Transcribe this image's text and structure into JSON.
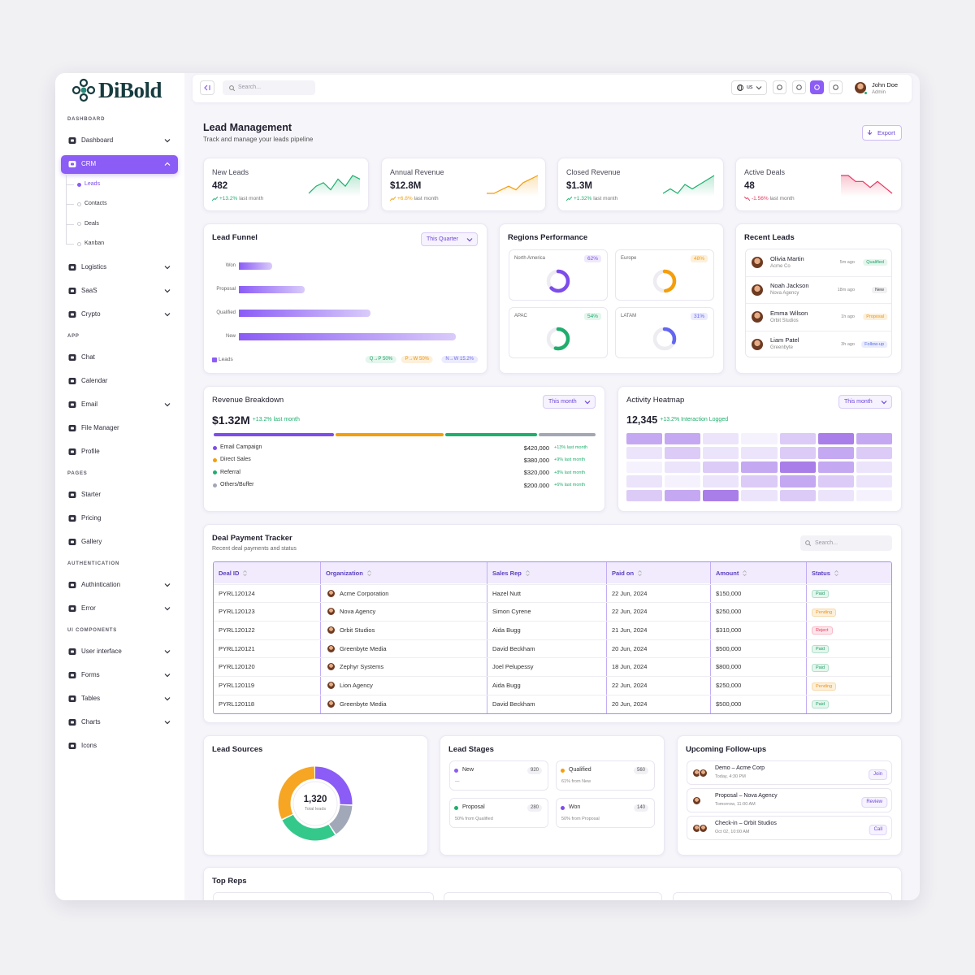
{
  "brand": "DiBold",
  "sidebar": [
    {
      "label": "DASHBOARD",
      "items": [
        {
          "label": "Dashboard",
          "chevron": true
        },
        {
          "label": "CRM",
          "active": true,
          "open": true,
          "chevron": true,
          "children": [
            {
              "label": "Leads",
              "active": true
            },
            {
              "label": "Contacts"
            },
            {
              "label": "Deals"
            },
            {
              "label": "Kanban"
            }
          ]
        },
        {
          "label": "Logistics",
          "chevron": true
        },
        {
          "label": "SaaS",
          "chevron": true
        },
        {
          "label": "Crypto",
          "chevron": true
        }
      ]
    },
    {
      "label": "APP",
      "items": [
        {
          "label": "Chat"
        },
        {
          "label": "Calendar"
        },
        {
          "label": "Email",
          "chevron": true
        },
        {
          "label": "File Manager"
        },
        {
          "label": "Profile"
        }
      ]
    },
    {
      "label": "PAGES",
      "items": [
        {
          "label": "Starter"
        },
        {
          "label": "Pricing"
        },
        {
          "label": "Gallery"
        }
      ]
    },
    {
      "label": "AUTHENTICATION",
      "items": [
        {
          "label": "Authintication",
          "chevron": true
        },
        {
          "label": "Error",
          "chevron": true
        }
      ]
    },
    {
      "label": "UI COMPONENTS",
      "items": [
        {
          "label": "User interface",
          "chevron": true
        },
        {
          "label": "Forms",
          "chevron": true
        },
        {
          "label": "Tables",
          "chevron": true
        },
        {
          "label": "Charts",
          "chevron": true
        },
        {
          "label": "Icons"
        }
      ]
    }
  ],
  "topbar": {
    "search_placeholder": "Search...",
    "language": "us",
    "user": {
      "name": "John Doe",
      "role": "Admin"
    }
  },
  "header": {
    "title": "Lead Management",
    "subtitle": "Track and manage your leads pipeline",
    "export": "Export"
  },
  "stats": [
    {
      "label": "New Leads",
      "value": "482",
      "change": "+13.2%",
      "period": "last month",
      "trend": "up",
      "color": "#1fae6e",
      "spark": [
        4,
        6,
        7,
        5,
        8,
        6,
        9,
        8
      ]
    },
    {
      "label": "Annual Revenue",
      "value": "$12.8M",
      "change": "+6.8%",
      "period": "last month",
      "trend": "up",
      "color": "#f59e0b",
      "spark": [
        3,
        3,
        4,
        5,
        4,
        6,
        7,
        8
      ]
    },
    {
      "label": "Closed Revenue",
      "value": "$1.3M",
      "change": "+1.32%",
      "period": "last month",
      "trend": "up",
      "color": "#1fae6e",
      "spark": [
        4,
        5,
        4,
        6,
        5,
        6,
        7,
        8
      ]
    },
    {
      "label": "Active Deals",
      "value": "48",
      "change": "-1.56%",
      "period": "last month",
      "trend": "down",
      "color": "#e8365d",
      "spark": [
        8,
        8,
        7,
        7,
        6,
        7,
        6,
        5
      ]
    }
  ],
  "funnel": {
    "title": "Lead Funnel",
    "filter": "This Quarter",
    "stages": [
      "Won",
      "Proposal",
      "Qualified",
      "New"
    ],
    "values": [
      140,
      280,
      560,
      920
    ],
    "xlim": [
      0,
      1000
    ],
    "legend": "Leads",
    "color": "#8b5cf6",
    "chips": [
      {
        "label": "Q→P 50%",
        "color": "#1fa06a",
        "bg": "#e4f6ed"
      },
      {
        "label": "P→W 50%",
        "color": "#e9931b",
        "bg": "#fdf0da"
      },
      {
        "label": "N→W 15.2%",
        "color": "#6d6ee8",
        "bg": "#ecebfd"
      }
    ]
  },
  "regions": {
    "title": "Regions Performance",
    "items": [
      {
        "name": "North America",
        "value": 62,
        "label": "62%",
        "color": "#7c4dea",
        "bg": "#efe9fd"
      },
      {
        "name": "Europe",
        "value": 48,
        "label": "48%",
        "color": "#f59e0b",
        "bg": "#fdf0da"
      },
      {
        "name": "APAC",
        "value": 54,
        "label": "54%",
        "color": "#1fae6e",
        "bg": "#e4f6ed"
      },
      {
        "name": "LATAM",
        "value": 31,
        "label": "31%",
        "color": "#6366f1",
        "bg": "#ebebfd"
      }
    ]
  },
  "recent_leads": {
    "title": "Recent Leads",
    "items": [
      {
        "name": "Olivia Martin",
        "company": "Acme Co",
        "time": "5m ago",
        "tag": "Qualified",
        "color": "#1fa06a",
        "bg": "#e4f6ed"
      },
      {
        "name": "Noah Jackson",
        "company": "Nova Agency",
        "time": "18m ago",
        "tag": "New",
        "color": "#444",
        "bg": "#f1f1f4"
      },
      {
        "name": "Emma Wilson",
        "company": "Orbit Studios",
        "time": "1h ago",
        "tag": "Proposal",
        "color": "#e9931b",
        "bg": "#fdf0da"
      },
      {
        "name": "Liam Patel",
        "company": "Greenbyte",
        "time": "3h ago",
        "tag": "Follow-up",
        "color": "#5b6ee8",
        "bg": "#e9ecfd"
      }
    ]
  },
  "revenue": {
    "title": "Revenue Breakdown",
    "filter": "This month",
    "total": "$1.32M",
    "change": "+13.2% last month",
    "items": [
      {
        "name": "Email Campaign",
        "value": 420000,
        "label": "$420,000",
        "change": "+13% last month",
        "color": "#7c4dea"
      },
      {
        "name": "Direct Sales",
        "value": 380000,
        "label": "$380,000",
        "change": "+9% last month",
        "color": "#f59e0b"
      },
      {
        "name": "Referral",
        "value": 320000,
        "label": "$320,000",
        "change": "+8% last month",
        "color": "#1fae6e"
      },
      {
        "name": "Others/Buffer",
        "value": 200000,
        "label": "$200,000",
        "change": "+6% last month",
        "color": "#a3a7b3"
      }
    ]
  },
  "heatmap": {
    "title": "Activity Heatmap",
    "filter": "This month",
    "total": "12,345",
    "change": "+13.2% Interaction Logged",
    "values": [
      [
        3,
        3,
        1,
        0,
        2,
        4,
        3
      ],
      [
        1,
        2,
        1,
        1,
        2,
        3,
        2
      ],
      [
        0,
        1,
        2,
        3,
        4,
        3,
        1
      ],
      [
        1,
        0,
        1,
        2,
        3,
        2,
        1
      ],
      [
        2,
        3,
        4,
        1,
        2,
        1,
        0
      ]
    ],
    "colors": [
      "#f6f2fd",
      "#ece4fb",
      "#dccbf7",
      "#c5a8f2",
      "#a97ee8"
    ]
  },
  "deals": {
    "title": "Deal Payment Tracker",
    "subtitle": "Recent deal payments and status",
    "search_placeholder": "Search...",
    "columns": [
      "Deal ID",
      "Organization",
      "Sales Rep",
      "Paid on",
      "Amount",
      "Status"
    ],
    "rows": [
      [
        "PYRL120124",
        "Acme Corporation",
        "Hazel Nutt",
        "22 Jun, 2024",
        "$150,000",
        "Paid"
      ],
      [
        "PYRL120123",
        "Nova Agency",
        "Simon Cyrene",
        "22 Jun, 2024",
        "$250,000",
        "Pending"
      ],
      [
        "PYRL120122",
        "Orbit Studios",
        "Aida Bugg",
        "21 Jun, 2024",
        "$310,000",
        "Reject"
      ],
      [
        "PYRL120121",
        "Greenbyte Media",
        "David Beckham",
        "20 Jun, 2024",
        "$500,000",
        "Paid"
      ],
      [
        "PYRL120120",
        "Zephyr Systems",
        "Joel Pelupessy",
        "18 Jun, 2024",
        "$800,000",
        "Paid"
      ],
      [
        "PYRL120119",
        "Lion Agency",
        "Aida Bugg",
        "22 Jun, 2024",
        "$250,000",
        "Pending"
      ],
      [
        "PYRL120118",
        "Greenbyte Media",
        "David Beckham",
        "20 Jun, 2024",
        "$500,000",
        "Paid"
      ]
    ],
    "status_styles": {
      "Paid": {
        "color": "#1fa06a",
        "bg": "#e4f6ed"
      },
      "Pending": {
        "color": "#e9931b",
        "bg": "#fdf0da"
      },
      "Reject": {
        "color": "#e8365d",
        "bg": "#fde6eb"
      }
    }
  },
  "lead_sources": {
    "title": "Lead Sources",
    "total": "1,320",
    "total_label": "Total leads",
    "values": [
      26,
      15,
      27,
      32
    ],
    "colors": [
      "#8b5cf6",
      "#a1a8b8",
      "#34c98b",
      "#f6a623"
    ]
  },
  "lead_stages": {
    "title": "Lead Stages",
    "items": [
      {
        "name": "New",
        "count": 920,
        "note": "—",
        "color": "#8b5cf6"
      },
      {
        "name": "Qualified",
        "count": 560,
        "note": "61% from New",
        "color": "#f59e0b"
      },
      {
        "name": "Proposal",
        "count": 280,
        "note": "50% from Qualified",
        "color": "#1fae6e"
      },
      {
        "name": "Won",
        "count": 140,
        "note": "50% from Proposal",
        "color": "#7c4dea"
      }
    ]
  },
  "followups": {
    "title": "Upcoming Follow-ups",
    "items": [
      {
        "title": "Demo – Acme Corp",
        "time": "Today, 4:30 PM",
        "action": "Join",
        "avatars": 2
      },
      {
        "title": "Proposal – Nova Agency",
        "time": "Tomorrow, 11:00 AM",
        "action": "Review",
        "avatars": 1
      },
      {
        "title": "Check-in – Orbit Studios",
        "time": "Oct 02, 10:00 AM",
        "action": "Call",
        "avatars": 2
      }
    ]
  },
  "top_reps": {
    "title": "Top Reps"
  }
}
